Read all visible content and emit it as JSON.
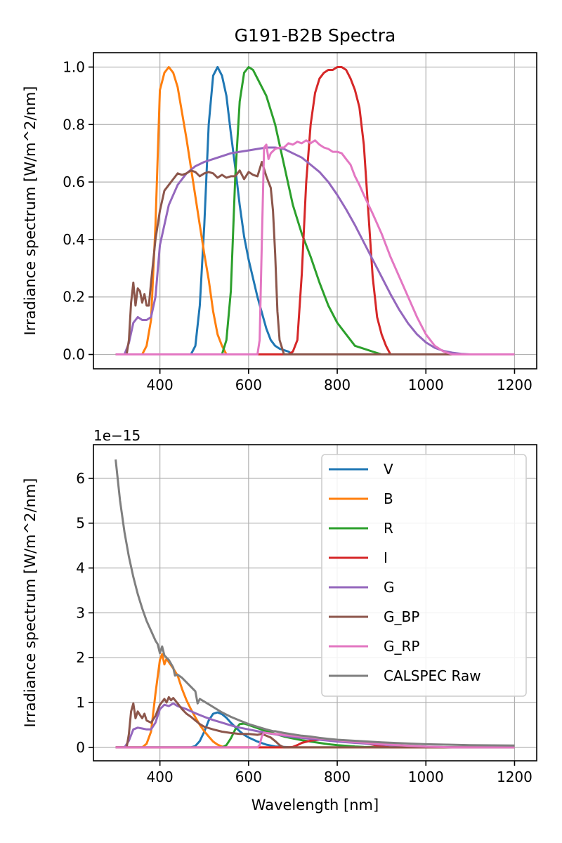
{
  "figure": {
    "background": "#ffffff"
  },
  "chart_data": [
    {
      "type": "line",
      "title": "G191-B2B Spectra",
      "xlabel": "",
      "ylabel": "Irradiance spectrum [W/m^2/nm]",
      "xlim": [
        250,
        1250
      ],
      "ylim": [
        -0.05,
        1.05
      ],
      "xticks": [
        400,
        600,
        800,
        1000,
        1200
      ],
      "yticks": [
        0.0,
        0.2,
        0.4,
        0.6,
        0.8,
        1.0
      ],
      "ytick_labels": [
        "0.0",
        "0.2",
        "0.4",
        "0.6",
        "0.8",
        "1.0"
      ],
      "grid": true,
      "legend": null,
      "series": [
        {
          "name": "V",
          "color": "#1f77b4",
          "x": [
            300,
            470,
            480,
            490,
            500,
            510,
            520,
            530,
            540,
            550,
            560,
            570,
            580,
            590,
            600,
            620,
            640,
            650,
            660,
            670,
            680,
            690,
            700,
            1200
          ],
          "y": [
            0,
            0,
            0.03,
            0.17,
            0.45,
            0.8,
            0.97,
            1.0,
            0.97,
            0.9,
            0.77,
            0.65,
            0.52,
            0.41,
            0.33,
            0.2,
            0.09,
            0.05,
            0.03,
            0.02,
            0.015,
            0.01,
            0.0,
            0
          ]
        },
        {
          "name": "B",
          "color": "#ff7f0e",
          "x": [
            300,
            360,
            370,
            380,
            390,
            400,
            410,
            420,
            430,
            440,
            450,
            460,
            470,
            480,
            490,
            500,
            510,
            520,
            530,
            540,
            550,
            1200
          ],
          "y": [
            0,
            0,
            0.03,
            0.12,
            0.45,
            0.92,
            0.98,
            1.0,
            0.98,
            0.93,
            0.84,
            0.75,
            0.65,
            0.55,
            0.45,
            0.35,
            0.26,
            0.15,
            0.07,
            0.03,
            0.0,
            0
          ]
        },
        {
          "name": "R",
          "color": "#2ca02c",
          "x": [
            300,
            540,
            550,
            560,
            570,
            580,
            590,
            600,
            610,
            620,
            640,
            660,
            680,
            700,
            720,
            740,
            760,
            780,
            800,
            820,
            840,
            850,
            880,
            900,
            1200
          ],
          "y": [
            0,
            0,
            0.05,
            0.22,
            0.62,
            0.88,
            0.98,
            1.0,
            0.99,
            0.96,
            0.9,
            0.8,
            0.66,
            0.52,
            0.42,
            0.34,
            0.25,
            0.17,
            0.11,
            0.07,
            0.03,
            0.025,
            0.01,
            0.0,
            0
          ]
        },
        {
          "name": "I",
          "color": "#d62728",
          "x": [
            300,
            690,
            700,
            710,
            720,
            730,
            740,
            750,
            760,
            770,
            780,
            790,
            800,
            810,
            820,
            830,
            840,
            850,
            860,
            870,
            880,
            890,
            900,
            910,
            920,
            1200
          ],
          "y": [
            0,
            0,
            0.01,
            0.05,
            0.28,
            0.6,
            0.8,
            0.91,
            0.96,
            0.98,
            0.99,
            0.99,
            1.0,
            1.0,
            0.99,
            0.96,
            0.92,
            0.86,
            0.73,
            0.5,
            0.27,
            0.13,
            0.07,
            0.03,
            0.0,
            0
          ]
        },
        {
          "name": "G",
          "color": "#9467bd",
          "x": [
            300,
            320,
            330,
            340,
            350,
            360,
            370,
            380,
            390,
            400,
            420,
            440,
            460,
            480,
            500,
            520,
            540,
            560,
            580,
            600,
            620,
            640,
            660,
            680,
            700,
            720,
            740,
            760,
            780,
            800,
            820,
            840,
            860,
            880,
            900,
            920,
            940,
            960,
            980,
            1000,
            1020,
            1040,
            1060,
            1080,
            1100,
            1200
          ],
          "y": [
            0,
            0,
            0.04,
            0.11,
            0.13,
            0.12,
            0.12,
            0.13,
            0.2,
            0.38,
            0.52,
            0.59,
            0.63,
            0.655,
            0.67,
            0.68,
            0.69,
            0.7,
            0.705,
            0.71,
            0.715,
            0.72,
            0.72,
            0.715,
            0.7,
            0.685,
            0.66,
            0.635,
            0.6,
            0.555,
            0.505,
            0.45,
            0.39,
            0.33,
            0.27,
            0.21,
            0.155,
            0.108,
            0.07,
            0.042,
            0.023,
            0.012,
            0.006,
            0.002,
            0,
            0
          ]
        },
        {
          "name": "G_BP",
          "color": "#8c564b",
          "x": [
            300,
            325,
            330,
            335,
            340,
            345,
            350,
            355,
            360,
            365,
            370,
            375,
            380,
            390,
            400,
            410,
            420,
            430,
            440,
            450,
            460,
            470,
            480,
            490,
            500,
            510,
            520,
            530,
            540,
            550,
            560,
            570,
            580,
            590,
            600,
            610,
            620,
            630,
            640,
            645,
            650,
            655,
            660,
            665,
            670,
            680,
            1200
          ],
          "y": [
            0,
            0,
            0.05,
            0.18,
            0.25,
            0.17,
            0.23,
            0.22,
            0.18,
            0.21,
            0.17,
            0.17,
            0.25,
            0.4,
            0.5,
            0.57,
            0.59,
            0.61,
            0.63,
            0.625,
            0.63,
            0.64,
            0.635,
            0.62,
            0.63,
            0.635,
            0.63,
            0.615,
            0.625,
            0.615,
            0.62,
            0.62,
            0.64,
            0.61,
            0.635,
            0.625,
            0.62,
            0.67,
            0.62,
            0.6,
            0.58,
            0.5,
            0.35,
            0.15,
            0.05,
            0.0,
            0
          ]
        },
        {
          "name": "G_RP",
          "color": "#e377c2",
          "x": [
            300,
            620,
            625,
            630,
            635,
            640,
            645,
            650,
            660,
            670,
            680,
            690,
            700,
            710,
            720,
            730,
            740,
            750,
            760,
            770,
            780,
            790,
            800,
            810,
            820,
            830,
            840,
            850,
            860,
            880,
            900,
            920,
            940,
            960,
            980,
            1000,
            1020,
            1040,
            1050,
            1060,
            1200
          ],
          "y": [
            0,
            0,
            0.05,
            0.4,
            0.72,
            0.73,
            0.68,
            0.7,
            0.715,
            0.72,
            0.72,
            0.735,
            0.73,
            0.74,
            0.735,
            0.745,
            0.735,
            0.745,
            0.73,
            0.72,
            0.715,
            0.705,
            0.705,
            0.7,
            0.68,
            0.66,
            0.62,
            0.59,
            0.555,
            0.49,
            0.42,
            0.34,
            0.27,
            0.2,
            0.13,
            0.07,
            0.03,
            0.01,
            0.005,
            0,
            0
          ]
        }
      ]
    },
    {
      "type": "line",
      "title": "",
      "offset_text": "1e−15",
      "xlabel": "Wavelength [nm]",
      "ylabel": "Irradiance spectrum [W/m^2/nm]",
      "xlim": [
        250,
        1250
      ],
      "ylim": [
        -0.3,
        6.75
      ],
      "xticks": [
        400,
        600,
        800,
        1000,
        1200
      ],
      "yticks": [
        0,
        1,
        2,
        3,
        4,
        5,
        6
      ],
      "ytick_labels": [
        "0",
        "1",
        "2",
        "3",
        "4",
        "5",
        "6"
      ],
      "grid": true,
      "legend": "top-right",
      "series": [
        {
          "name": "V",
          "color": "#1f77b4",
          "x": [
            300,
            470,
            480,
            490,
            500,
            510,
            520,
            530,
            540,
            550,
            560,
            570,
            580,
            590,
            600,
            620,
            640,
            660,
            680,
            700,
            1200
          ],
          "y": [
            0,
            0,
            0.03,
            0.14,
            0.35,
            0.6,
            0.75,
            0.78,
            0.74,
            0.66,
            0.55,
            0.45,
            0.36,
            0.28,
            0.22,
            0.13,
            0.06,
            0.02,
            0.01,
            0.0,
            0
          ]
        },
        {
          "name": "B",
          "color": "#ff7f0e",
          "x": [
            300,
            360,
            370,
            380,
            390,
            400,
            405,
            410,
            415,
            420,
            430,
            440,
            450,
            460,
            470,
            480,
            490,
            500,
            510,
            520,
            530,
            540,
            550,
            1200
          ],
          "y": [
            0,
            0,
            0.08,
            0.35,
            1.2,
            1.95,
            2.08,
            1.85,
            1.98,
            1.9,
            1.76,
            1.6,
            1.3,
            1.05,
            0.85,
            0.67,
            0.5,
            0.36,
            0.24,
            0.13,
            0.06,
            0.02,
            0.0,
            0
          ]
        },
        {
          "name": "R",
          "color": "#2ca02c",
          "x": [
            300,
            540,
            550,
            560,
            570,
            580,
            590,
            600,
            620,
            640,
            660,
            680,
            700,
            720,
            740,
            760,
            780,
            800,
            820,
            840,
            860,
            880,
            900,
            1200
          ],
          "y": [
            0,
            0,
            0.05,
            0.2,
            0.4,
            0.52,
            0.53,
            0.5,
            0.43,
            0.36,
            0.3,
            0.24,
            0.2,
            0.16,
            0.13,
            0.1,
            0.07,
            0.05,
            0.035,
            0.02,
            0.01,
            0.005,
            0.0,
            0
          ]
        },
        {
          "name": "I",
          "color": "#d62728",
          "x": [
            300,
            690,
            700,
            710,
            720,
            740,
            760,
            780,
            800,
            820,
            840,
            860,
            880,
            900,
            920,
            1200
          ],
          "y": [
            0,
            0,
            0.01,
            0.05,
            0.1,
            0.15,
            0.17,
            0.17,
            0.16,
            0.14,
            0.12,
            0.1,
            0.06,
            0.02,
            0.0,
            0
          ]
        },
        {
          "name": "G",
          "color": "#9467bd",
          "x": [
            300,
            320,
            330,
            340,
            350,
            360,
            370,
            380,
            390,
            400,
            410,
            420,
            430,
            440,
            460,
            480,
            500,
            520,
            540,
            560,
            580,
            600,
            620,
            640,
            660,
            680,
            700,
            720,
            740,
            760,
            780,
            800,
            840,
            880,
            920,
            960,
            1000,
            1040,
            1060,
            1200
          ],
          "y": [
            0,
            0,
            0.15,
            0.4,
            0.44,
            0.42,
            0.4,
            0.4,
            0.55,
            0.85,
            0.95,
            0.92,
            0.98,
            0.92,
            0.85,
            0.76,
            0.68,
            0.61,
            0.55,
            0.49,
            0.44,
            0.4,
            0.36,
            0.32,
            0.29,
            0.26,
            0.23,
            0.21,
            0.19,
            0.17,
            0.15,
            0.13,
            0.1,
            0.075,
            0.05,
            0.03,
            0.015,
            0.005,
            0.002,
            0
          ]
        },
        {
          "name": "G_BP",
          "color": "#8c564b",
          "x": [
            300,
            325,
            330,
            335,
            340,
            345,
            350,
            355,
            360,
            365,
            370,
            380,
            390,
            400,
            410,
            415,
            420,
            425,
            430,
            440,
            450,
            460,
            470,
            480,
            490,
            500,
            520,
            540,
            560,
            580,
            600,
            620,
            630,
            640,
            650,
            660,
            670,
            680,
            1200
          ],
          "y": [
            0,
            0,
            0.3,
            0.8,
            0.98,
            0.65,
            0.8,
            0.72,
            0.65,
            0.75,
            0.6,
            0.55,
            0.7,
            0.95,
            1.08,
            1.0,
            1.12,
            1.05,
            1.1,
            0.98,
            0.85,
            0.75,
            0.68,
            0.6,
            0.52,
            0.46,
            0.4,
            0.35,
            0.32,
            0.3,
            0.3,
            0.28,
            0.3,
            0.26,
            0.22,
            0.14,
            0.05,
            0.0,
            0
          ]
        },
        {
          "name": "G_RP",
          "color": "#e377c2",
          "x": [
            300,
            620,
            625,
            630,
            635,
            640,
            660,
            680,
            700,
            720,
            740,
            760,
            780,
            800,
            840,
            880,
            920,
            960,
            1000,
            1040,
            1060,
            1200
          ],
          "y": [
            0,
            0,
            0.05,
            0.25,
            0.33,
            0.32,
            0.3,
            0.28,
            0.26,
            0.24,
            0.22,
            0.2,
            0.18,
            0.16,
            0.12,
            0.09,
            0.06,
            0.035,
            0.015,
            0.005,
            0.0,
            0
          ]
        },
        {
          "name": "CALSPEC Raw",
          "color": "#7f7f7f",
          "x": [
            300,
            310,
            320,
            330,
            340,
            350,
            360,
            370,
            380,
            390,
            395,
            400,
            405,
            410,
            420,
            430,
            434,
            440,
            450,
            460,
            470,
            480,
            485,
            490,
            500,
            520,
            540,
            560,
            580,
            600,
            620,
            640,
            656,
            660,
            680,
            700,
            720,
            740,
            760,
            780,
            800,
            850,
            900,
            950,
            1000,
            1050,
            1100,
            1150,
            1200
          ],
          "y": [
            6.42,
            5.5,
            4.8,
            4.25,
            3.8,
            3.42,
            3.1,
            2.82,
            2.6,
            2.38,
            2.3,
            2.1,
            2.25,
            2.05,
            1.95,
            1.78,
            1.6,
            1.62,
            1.55,
            1.45,
            1.35,
            1.25,
            0.98,
            1.08,
            1.02,
            0.9,
            0.78,
            0.68,
            0.6,
            0.52,
            0.46,
            0.4,
            0.36,
            0.36,
            0.32,
            0.29,
            0.26,
            0.24,
            0.21,
            0.19,
            0.17,
            0.14,
            0.11,
            0.09,
            0.07,
            0.06,
            0.05,
            0.045,
            0.04
          ]
        }
      ]
    }
  ]
}
